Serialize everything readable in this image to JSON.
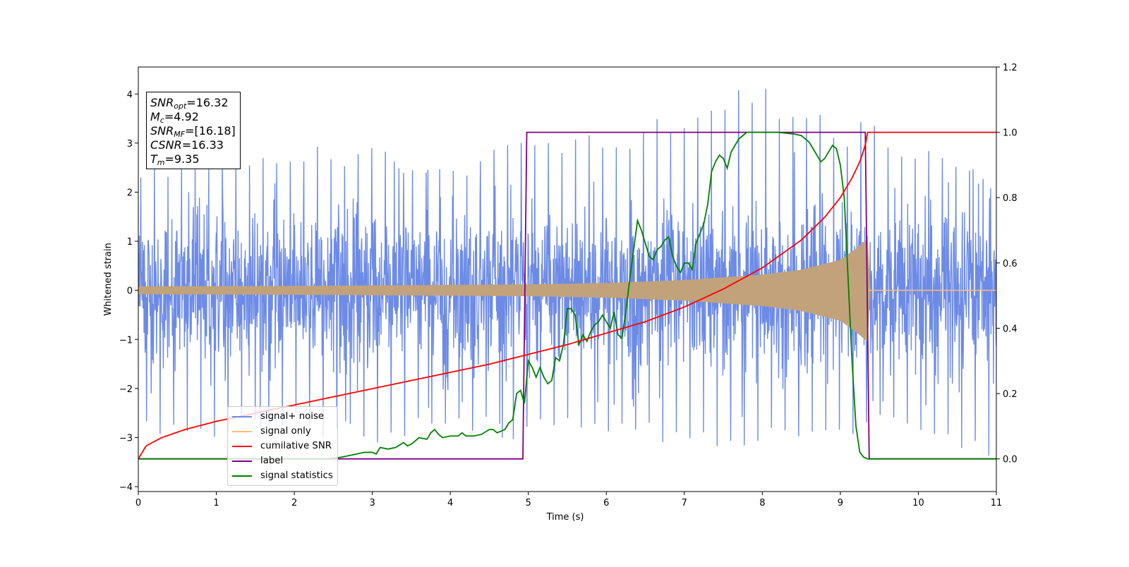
{
  "chart_data": {
    "type": "line",
    "xlabel": "Time (s)",
    "ylabel": "Whitened strain",
    "xlim": [
      0,
      11
    ],
    "ylim": [
      -4.1,
      4.55
    ],
    "y2lim": [
      -0.1,
      1.2
    ],
    "x_ticks": [
      "0",
      "1",
      "2",
      "3",
      "4",
      "5",
      "6",
      "7",
      "8",
      "9",
      "10",
      "11"
    ],
    "y_ticks": [
      "−4",
      "−3",
      "−2",
      "−1",
      "0",
      "1",
      "2",
      "3",
      "4"
    ],
    "y2_ticks": [
      "0.0",
      "0.2",
      "0.4",
      "0.6",
      "0.8",
      "1.0",
      "1.2"
    ],
    "legend_placement": "lower-left",
    "annotation": {
      "snr_opt": "=16.32",
      "mc": "=4.92",
      "snr_mf": "=[16.18]",
      "csnr": "=16.33",
      "tm": "=9.35"
    },
    "series": [
      {
        "name": "signal+ noise",
        "color": "#6d8be6",
        "axis": "left",
        "envelope": {
          "x": [
            0,
            1,
            2,
            3,
            4,
            5,
            6,
            7,
            8,
            9,
            9.3,
            9.5,
            10,
            11
          ],
          "upper_peaks": [
            2.6,
            2.8,
            3.0,
            2.9,
            2.6,
            3.1,
            3.2,
            3.8,
            4.2,
            3.4,
            3.5,
            3.3,
            3.1,
            2.2
          ],
          "lower_peaks": [
            -3.1,
            -3.0,
            -2.9,
            -3.3,
            -2.8,
            -3.1,
            -2.9,
            -3.35,
            -3.1,
            -3.3,
            -3.0,
            -2.8,
            -2.9,
            -3.65
          ],
          "typical_amplitude": 1.6
        }
      },
      {
        "name": "signal only",
        "color": "#ffbb78",
        "axis": "left",
        "envelope": {
          "x": [
            0,
            2,
            4,
            5,
            6,
            7,
            8,
            8.5,
            9,
            9.2,
            9.35,
            9.36,
            11
          ],
          "amplitude": [
            0.08,
            0.09,
            0.11,
            0.12,
            0.15,
            0.21,
            0.32,
            0.42,
            0.62,
            0.85,
            1.05,
            0,
            0
          ]
        }
      },
      {
        "name": "cumilative SNR",
        "color": "#ff0000",
        "axis": "right",
        "x": [
          0,
          0.1,
          0.3,
          0.6,
          1,
          1.5,
          2,
          2.5,
          3,
          3.5,
          4,
          4.5,
          5,
          5.5,
          6,
          6.5,
          7,
          7.5,
          8,
          8.5,
          8.8,
          9.0,
          9.15,
          9.25,
          9.32,
          9.35,
          11
        ],
        "y": [
          0.0,
          0.04,
          0.065,
          0.09,
          0.115,
          0.14,
          0.165,
          0.19,
          0.215,
          0.24,
          0.265,
          0.29,
          0.32,
          0.35,
          0.385,
          0.42,
          0.465,
          0.52,
          0.585,
          0.67,
          0.74,
          0.8,
          0.86,
          0.91,
          0.96,
          1.0,
          1.0
        ]
      },
      {
        "name": "label",
        "color": "#800080",
        "axis": "right",
        "x": [
          0,
          4.93,
          4.98,
          9.32,
          9.37,
          11
        ],
        "y": [
          0,
          0,
          1,
          1,
          0,
          0
        ]
      },
      {
        "name": "signal statistics",
        "color": "#008000",
        "axis": "right",
        "x": [
          0,
          2.4,
          2.6,
          2.8,
          2.9,
          3.0,
          3.05,
          3.1,
          3.2,
          3.3,
          3.4,
          3.45,
          3.5,
          3.6,
          3.7,
          3.75,
          3.8,
          3.85,
          3.9,
          4.0,
          4.1,
          4.15,
          4.2,
          4.3,
          4.4,
          4.5,
          4.55,
          4.6,
          4.7,
          4.75,
          4.8,
          4.85,
          4.9,
          4.95,
          5.0,
          5.05,
          5.1,
          5.15,
          5.2,
          5.25,
          5.3,
          5.35,
          5.4,
          5.45,
          5.5,
          5.55,
          5.6,
          5.65,
          5.7,
          5.75,
          5.8,
          5.85,
          5.9,
          5.95,
          6.0,
          6.05,
          6.1,
          6.15,
          6.2,
          6.25,
          6.3,
          6.35,
          6.4,
          6.45,
          6.5,
          6.55,
          6.6,
          6.65,
          6.7,
          6.75,
          6.8,
          6.85,
          6.9,
          6.95,
          7.0,
          7.05,
          7.1,
          7.15,
          7.2,
          7.25,
          7.3,
          7.35,
          7.4,
          7.45,
          7.5,
          7.55,
          7.6,
          7.65,
          7.7,
          7.75,
          7.8,
          7.9,
          8.0,
          8.2,
          8.4,
          8.5,
          8.6,
          8.65,
          8.7,
          8.75,
          8.8,
          8.85,
          8.9,
          8.95,
          9.0,
          9.05,
          9.1,
          9.15,
          9.2,
          9.25,
          9.3,
          9.35,
          9.4,
          9.5,
          9.6,
          11
        ],
        "y": [
          0.0,
          0.0,
          0.005,
          0.015,
          0.02,
          0.02,
          0.015,
          0.035,
          0.03,
          0.035,
          0.05,
          0.04,
          0.045,
          0.065,
          0.06,
          0.08,
          0.09,
          0.075,
          0.065,
          0.07,
          0.07,
          0.08,
          0.07,
          0.07,
          0.075,
          0.09,
          0.09,
          0.08,
          0.09,
          0.11,
          0.12,
          0.2,
          0.21,
          0.17,
          0.3,
          0.28,
          0.25,
          0.28,
          0.25,
          0.23,
          0.24,
          0.31,
          0.3,
          0.35,
          0.46,
          0.46,
          0.44,
          0.35,
          0.38,
          0.36,
          0.39,
          0.41,
          0.42,
          0.44,
          0.42,
          0.4,
          0.45,
          0.38,
          0.37,
          0.45,
          0.55,
          0.64,
          0.73,
          0.7,
          0.66,
          0.62,
          0.61,
          0.64,
          0.65,
          0.67,
          0.68,
          0.62,
          0.59,
          0.57,
          0.6,
          0.6,
          0.58,
          0.66,
          0.69,
          0.72,
          0.78,
          0.88,
          0.91,
          0.93,
          0.92,
          0.89,
          0.94,
          0.96,
          0.98,
          0.99,
          1.0,
          1.0,
          1.0,
          1.0,
          0.995,
          0.99,
          0.97,
          0.95,
          0.93,
          0.91,
          0.92,
          0.94,
          0.96,
          0.95,
          0.9,
          0.8,
          0.55,
          0.3,
          0.1,
          0.02,
          0.005,
          0.0,
          0.0,
          0.0,
          0.0,
          0.0
        ]
      }
    ]
  }
}
